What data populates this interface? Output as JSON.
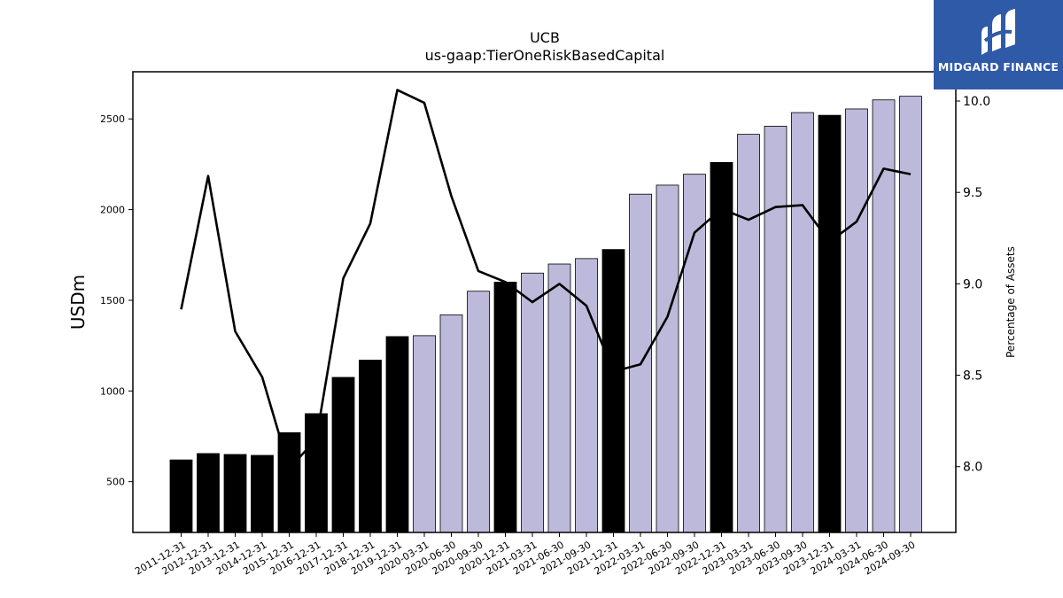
{
  "chart_data": {
    "type": "bar",
    "title": "UCB",
    "subtitle": "us-gaap:TierOneRiskBasedCapital",
    "ylabel": "USDm",
    "y2label": "Percentage of Assets",
    "ylim": [
      220,
      2760
    ],
    "y2lim": [
      7.64,
      10.16
    ],
    "yticks": [
      "500",
      "1000",
      "1500",
      "2000",
      "2500"
    ],
    "y2ticks": [
      "8.0",
      "8.5",
      "9.0",
      "9.5",
      "10.0"
    ],
    "colors": {
      "annual": "#000000",
      "quarterly": "#bdb9da",
      "line": "#000000"
    },
    "categories": [
      "2011-12-31",
      "2012-12-31",
      "2013-12-31",
      "2014-12-31",
      "2015-12-31",
      "2016-12-31",
      "2017-12-31",
      "2018-12-31",
      "2019-12-31",
      "2020-03-31",
      "2020-06-30",
      "2020-09-30",
      "2020-12-31",
      "2021-03-31",
      "2021-06-30",
      "2021-09-30",
      "2021-12-31",
      "2022-03-31",
      "2022-06-30",
      "2022-09-30",
      "2022-12-31",
      "2023-03-31",
      "2023-06-30",
      "2023-09-30",
      "2023-12-31",
      "2024-03-31",
      "2024-06-30",
      "2024-09-30"
    ],
    "series": [
      {
        "kind": "bar",
        "values": [
          620,
          655,
          650,
          645,
          770,
          875,
          1075,
          1170,
          1300,
          1305,
          1420,
          1550,
          1600,
          1650,
          1700,
          1730,
          1780,
          2085,
          2135,
          2195,
          2260,
          2415,
          2460,
          2535,
          2520,
          2555,
          2605,
          2625
        ],
        "annual": [
          true,
          true,
          true,
          true,
          true,
          true,
          true,
          true,
          true,
          false,
          false,
          false,
          true,
          false,
          false,
          false,
          true,
          false,
          false,
          false,
          true,
          false,
          false,
          false,
          true,
          false,
          false,
          false
        ]
      },
      {
        "kind": "line",
        "axis": "right",
        "values": [
          8.86,
          9.59,
          8.74,
          8.49,
          7.99,
          8.15,
          9.03,
          9.33,
          10.06,
          9.99,
          9.48,
          9.07,
          9.01,
          8.9,
          9.0,
          8.88,
          8.52,
          8.56,
          8.82,
          9.28,
          9.41,
          9.35,
          9.42,
          9.43,
          9.23,
          9.34,
          9.63,
          9.6
        ]
      }
    ]
  },
  "logo": {
    "text": "MIDGARD FINANCE"
  }
}
